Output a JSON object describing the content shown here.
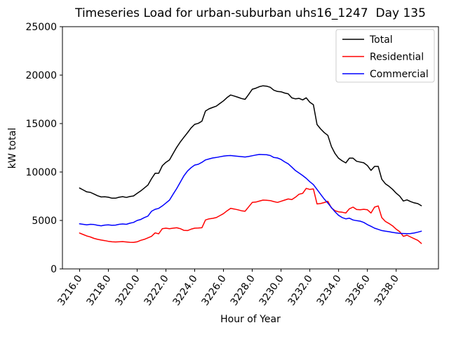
{
  "figure": {
    "title": "Timeseries Load for urban-suburban uhs16_1247  Day 135",
    "background_color": "#ffffff"
  },
  "chart_data": {
    "type": "line",
    "title": "Timeseries Load for urban-suburban uhs16_1247  Day 135",
    "xlabel": "Hour of Year",
    "ylabel": "kW total",
    "xlim": [
      3214.81,
      3240.94
    ],
    "ylim": [
      0,
      25000
    ],
    "grid": false,
    "xticks": [
      3216,
      3218,
      3220,
      3222,
      3224,
      3226,
      3228,
      3230,
      3232,
      3234,
      3236,
      3238
    ],
    "xtick_labels": [
      "3216.0",
      "3218.0",
      "3220.0",
      "3222.0",
      "3224.0",
      "3226.0",
      "3228.0",
      "3230.0",
      "3232.0",
      "3234.0",
      "3236.0",
      "3238.0"
    ],
    "xtick_rotation_deg": 55,
    "yticks": [
      0,
      5000,
      10000,
      15000,
      20000,
      25000
    ],
    "ytick_labels": [
      "0",
      "5000",
      "10000",
      "15000",
      "20000",
      "25000"
    ],
    "legend": {
      "location": "upper right",
      "entries": [
        "Total",
        "Residential",
        "Commercial"
      ],
      "border_color": "#cccccc"
    },
    "x": [
      3216.0,
      3216.25,
      3216.5,
      3216.75,
      3217.0,
      3217.25,
      3217.5,
      3217.75,
      3218.0,
      3218.25,
      3218.5,
      3218.75,
      3219.0,
      3219.25,
      3219.5,
      3219.75,
      3220.0,
      3220.25,
      3220.5,
      3220.75,
      3221.0,
      3221.25,
      3221.5,
      3221.75,
      3222.0,
      3222.25,
      3222.5,
      3222.75,
      3223.0,
      3223.25,
      3223.5,
      3223.75,
      3224.0,
      3224.25,
      3224.5,
      3224.75,
      3225.0,
      3225.25,
      3225.5,
      3225.75,
      3226.0,
      3226.25,
      3226.5,
      3226.75,
      3227.0,
      3227.25,
      3227.5,
      3227.75,
      3228.0,
      3228.25,
      3228.5,
      3228.75,
      3229.0,
      3229.25,
      3229.5,
      3229.75,
      3230.0,
      3230.25,
      3230.5,
      3230.75,
      3231.0,
      3231.25,
      3231.5,
      3231.75,
      3232.0,
      3232.25,
      3232.5,
      3232.75,
      3233.0,
      3233.25,
      3233.5,
      3233.75,
      3234.0,
      3234.25,
      3234.5,
      3234.75,
      3235.0,
      3235.25,
      3235.5,
      3235.75,
      3236.0,
      3236.25,
      3236.5,
      3236.75,
      3237.0,
      3237.25,
      3237.5,
      3237.75,
      3238.0,
      3238.25,
      3238.5,
      3238.75,
      3239.0,
      3239.25,
      3239.5,
      3239.75
    ],
    "series": [
      {
        "name": "Total",
        "color": "#000000",
        "values": [
          8350,
          8150,
          7950,
          7900,
          7730,
          7550,
          7430,
          7440,
          7400,
          7300,
          7300,
          7400,
          7460,
          7380,
          7470,
          7530,
          7800,
          8050,
          8350,
          8650,
          9310,
          9870,
          9870,
          10650,
          11000,
          11250,
          11900,
          12550,
          13100,
          13580,
          14060,
          14550,
          14920,
          15020,
          15250,
          16300,
          16520,
          16670,
          16800,
          17070,
          17340,
          17690,
          17950,
          17840,
          17720,
          17590,
          17500,
          18000,
          18540,
          18650,
          18810,
          18900,
          18860,
          18750,
          18450,
          18310,
          18280,
          18150,
          18070,
          17650,
          17550,
          17600,
          17440,
          17660,
          17200,
          16950,
          14900,
          14450,
          14070,
          13780,
          12630,
          11910,
          11420,
          11150,
          10940,
          11430,
          11430,
          11110,
          11030,
          10950,
          10670,
          10170,
          10580,
          10580,
          9250,
          8790,
          8530,
          8210,
          7820,
          7510,
          7010,
          7120,
          6950,
          6820,
          6740,
          6520
        ]
      },
      {
        "name": "Residential",
        "color": "#ff0000",
        "values": [
          3700,
          3550,
          3400,
          3300,
          3150,
          3050,
          2980,
          2920,
          2850,
          2800,
          2780,
          2800,
          2820,
          2780,
          2750,
          2730,
          2800,
          2950,
          3050,
          3200,
          3360,
          3720,
          3620,
          4150,
          4200,
          4150,
          4200,
          4250,
          4150,
          3980,
          3960,
          4100,
          4200,
          4220,
          4250,
          5050,
          5170,
          5220,
          5300,
          5500,
          5700,
          6000,
          6250,
          6180,
          6100,
          6000,
          5950,
          6400,
          6860,
          6900,
          7000,
          7100,
          7080,
          7050,
          6950,
          6860,
          6980,
          7100,
          7220,
          7150,
          7400,
          7700,
          7800,
          8310,
          8200,
          8250,
          6700,
          6750,
          6850,
          6980,
          6300,
          6010,
          5890,
          5850,
          5770,
          6200,
          6380,
          6130,
          6100,
          6150,
          6100,
          5770,
          6380,
          6500,
          5290,
          4900,
          4690,
          4440,
          4100,
          3840,
          3360,
          3480,
          3300,
          3120,
          2950,
          2630
        ]
      },
      {
        "name": "Commercial",
        "color": "#0000ff",
        "values": [
          4650,
          4600,
          4550,
          4600,
          4580,
          4500,
          4450,
          4520,
          4550,
          4500,
          4520,
          4600,
          4640,
          4600,
          4720,
          4800,
          5000,
          5100,
          5300,
          5450,
          5950,
          6150,
          6250,
          6500,
          6800,
          7100,
          7700,
          8300,
          8950,
          9600,
          10100,
          10450,
          10720,
          10800,
          11000,
          11250,
          11350,
          11450,
          11500,
          11570,
          11640,
          11690,
          11700,
          11660,
          11620,
          11590,
          11550,
          11600,
          11680,
          11750,
          11810,
          11800,
          11780,
          11700,
          11500,
          11450,
          11300,
          11050,
          10850,
          10500,
          10150,
          9900,
          9640,
          9350,
          9000,
          8700,
          8200,
          7700,
          7220,
          6800,
          6330,
          5900,
          5530,
          5300,
          5170,
          5230,
          5050,
          4980,
          4930,
          4800,
          4570,
          4400,
          4200,
          4080,
          3960,
          3890,
          3840,
          3770,
          3720,
          3670,
          3650,
          3640,
          3650,
          3700,
          3790,
          3890
        ]
      }
    ]
  }
}
